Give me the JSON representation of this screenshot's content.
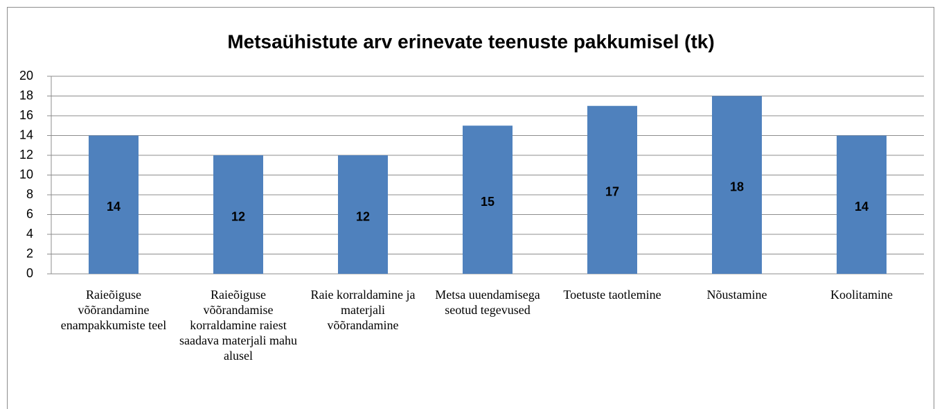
{
  "chart_data": {
    "type": "bar",
    "title": "Metsaühistute arv erinevate teenuste pakkumisel (tk)",
    "categories": [
      "Raieõiguse võõrandamine enampakkumiste teel",
      "Raieõiguse võõrandamise korraldamine raiest saadava materjali mahu alusel",
      "Raie korraldamine ja materjali võõrandamine",
      "Metsa uuendamisega seotud tegevused",
      "Toetuste taotlemine",
      "Nõustamine",
      "Koolitamine"
    ],
    "values": [
      14,
      12,
      12,
      15,
      17,
      18,
      14
    ],
    "color": "#4f81bd",
    "ylim": [
      0,
      20
    ],
    "yticks": [
      0,
      2,
      4,
      6,
      8,
      10,
      12,
      14,
      16,
      18,
      20
    ],
    "grid": true
  }
}
